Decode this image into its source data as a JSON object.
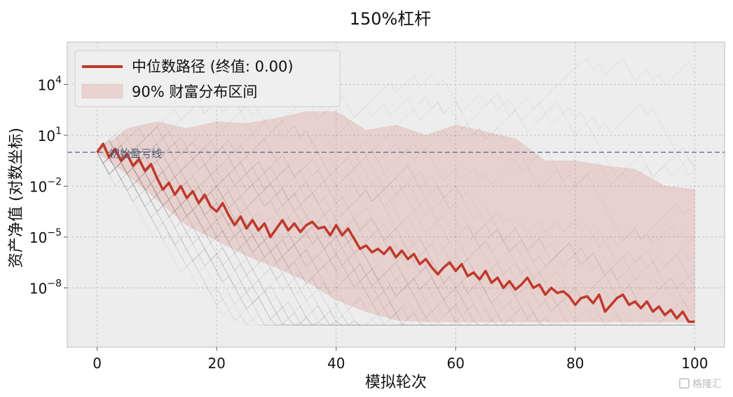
{
  "chart_data": {
    "type": "line",
    "title": "150%杠杆",
    "xlabel": "模拟轮次",
    "ylabel": "资产净值 (对数坐标)",
    "xlim": [
      -5,
      105
    ],
    "ylim_log10": [
      -11.5,
      6.5
    ],
    "yscale": "log",
    "grid": true,
    "legend_position": "top-left",
    "x_ticks": [
      0,
      20,
      40,
      60,
      80,
      100
    ],
    "x_tick_labels": [
      "0",
      "20",
      "40",
      "60",
      "80",
      "100"
    ],
    "y_ticks_log10": [
      4,
      1,
      -2,
      -5,
      -8
    ],
    "y_tick_labels": [
      {
        "base": "10",
        "exp": "4"
      },
      {
        "base": "10",
        "exp": "1"
      },
      {
        "base": "10",
        "exp": "−2"
      },
      {
        "base": "10",
        "exp": "−5"
      },
      {
        "base": "10",
        "exp": "−8"
      }
    ],
    "reference_line": {
      "y": 1,
      "label": "初始盈亏线",
      "color": "#6a7a94"
    },
    "series": [
      {
        "name": "中位数路径 (终值: 0.00)",
        "color": "#c0392b",
        "x": [
          0,
          1,
          2,
          3,
          4,
          5,
          6,
          7,
          8,
          9,
          10,
          11,
          12,
          13,
          14,
          15,
          16,
          17,
          18,
          19,
          20,
          21,
          22,
          23,
          24,
          25,
          26,
          27,
          28,
          29,
          30,
          31,
          32,
          33,
          34,
          35,
          36,
          37,
          38,
          39,
          40,
          41,
          42,
          43,
          44,
          45,
          46,
          47,
          48,
          49,
          50,
          51,
          52,
          53,
          54,
          55,
          56,
          57,
          58,
          59,
          60,
          61,
          62,
          63,
          64,
          65,
          66,
          67,
          68,
          69,
          70,
          71,
          72,
          73,
          74,
          75,
          76,
          77,
          78,
          79,
          80,
          81,
          82,
          83,
          84,
          85,
          86,
          87,
          88,
          89,
          90,
          91,
          92,
          93,
          94,
          95,
          96,
          97,
          98,
          99,
          100
        ],
        "log10_y": [
          0,
          0.5,
          -0.3,
          0.2,
          -0.5,
          -0.1,
          -0.8,
          -0.4,
          -1.1,
          -0.7,
          -1.5,
          -2.2,
          -1.8,
          -2.5,
          -2.0,
          -2.7,
          -2.3,
          -3.0,
          -2.5,
          -3.2,
          -3.5,
          -3.0,
          -3.7,
          -4.3,
          -3.8,
          -4.5,
          -4.0,
          -4.6,
          -4.2,
          -5.0,
          -4.5,
          -4.0,
          -4.6,
          -4.2,
          -4.7,
          -4.3,
          -4.1,
          -4.5,
          -4.4,
          -4.9,
          -4.3,
          -4.9,
          -4.5,
          -5.1,
          -5.7,
          -5.5,
          -5.9,
          -5.7,
          -6.0,
          -5.6,
          -6.2,
          -5.8,
          -6.3,
          -6.0,
          -6.6,
          -6.3,
          -6.8,
          -7.2,
          -6.8,
          -6.5,
          -7.0,
          -6.6,
          -7.3,
          -7.1,
          -7.5,
          -7.0,
          -7.7,
          -7.4,
          -8.0,
          -7.6,
          -8.1,
          -7.8,
          -7.4,
          -8.0,
          -7.8,
          -8.4,
          -8.0,
          -8.3,
          -8.2,
          -8.5,
          -9.0,
          -8.6,
          -8.5,
          -8.9,
          -8.4,
          -9.4,
          -9.0,
          -8.6,
          -8.4,
          -9.0,
          -8.8,
          -9.2,
          -8.8,
          -9.4,
          -9.1,
          -9.6,
          -9.3,
          -9.8,
          -9.4,
          -10.0,
          -10.0
        ]
      },
      {
        "name": "90% 财富分布区间",
        "kind": "band",
        "color": "#c0392b",
        "opacity": 0.15,
        "x": [
          0,
          5,
          10,
          15,
          20,
          25,
          30,
          35,
          40,
          45,
          50,
          55,
          60,
          65,
          70,
          75,
          80,
          85,
          90,
          95,
          100
        ],
        "log10_upper": [
          0,
          1.4,
          1.8,
          1.4,
          1.8,
          1.7,
          2.0,
          2.4,
          2.4,
          1.3,
          1.6,
          1.0,
          1.6,
          1.2,
          0.8,
          -0.5,
          -0.5,
          -0.8,
          -1.0,
          -2.0,
          -2.2
        ],
        "log10_lower": [
          0,
          -1.3,
          -2.8,
          -4.3,
          -5.2,
          -6.1,
          -6.8,
          -7.6,
          -8.7,
          -9.4,
          -9.9,
          -10.0,
          -10.0,
          -10.0,
          -10.0,
          -10.0,
          -10.0,
          -10.0,
          -10.0,
          -10.0,
          -10.0
        ]
      }
    ]
  },
  "watermark": "格隆汇"
}
